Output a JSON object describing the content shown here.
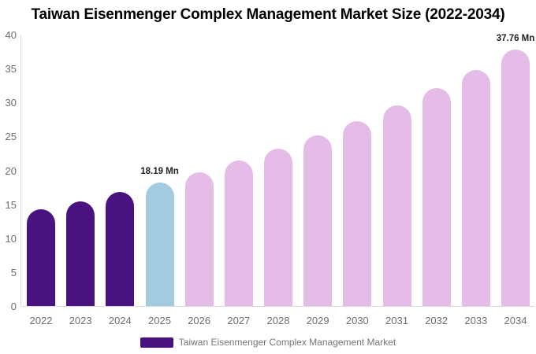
{
  "title": "Taiwan Eisenmenger Complex Management Market Size (2022-2034)",
  "legend": {
    "label": "Taiwan Eisenmenger Complex Management Market",
    "swatch_color": "#4a1180"
  },
  "colors": {
    "historical_bar": "#4a1180",
    "base_year_bar": "#a3cbe0",
    "forecast_bar": "#e5bce8",
    "axis_line": "#dbdbdb",
    "tick_text": "#6e6e6e",
    "value_label_text": "#222222",
    "title_text": "#000000"
  },
  "chart_data": {
    "type": "bar",
    "title": "Taiwan Eisenmenger Complex Management Market Size (2022-2034)",
    "xlabel": "",
    "ylabel": "",
    "ylim": [
      0,
      40
    ],
    "yticks": [
      0,
      5,
      10,
      15,
      20,
      25,
      30,
      35,
      40
    ],
    "grid": false,
    "legend_position": "bottom",
    "categories": [
      "2022",
      "2023",
      "2024",
      "2025",
      "2026",
      "2027",
      "2028",
      "2029",
      "2030",
      "2031",
      "2032",
      "2033",
      "2034"
    ],
    "values": [
      14.26,
      15.47,
      16.77,
      18.19,
      19.73,
      21.4,
      23.21,
      25.17,
      27.3,
      29.61,
      32.11,
      34.82,
      37.76
    ],
    "bar_colors": [
      "#4a1180",
      "#4a1180",
      "#4a1180",
      "#a3cbe0",
      "#e5bce8",
      "#e5bce8",
      "#e5bce8",
      "#e5bce8",
      "#e5bce8",
      "#e5bce8",
      "#e5bce8",
      "#e5bce8",
      "#e5bce8"
    ],
    "annotations": [
      {
        "category": "2025",
        "text": "18.19 Mn"
      },
      {
        "category": "2034",
        "text": "37.76 Mn"
      }
    ]
  }
}
